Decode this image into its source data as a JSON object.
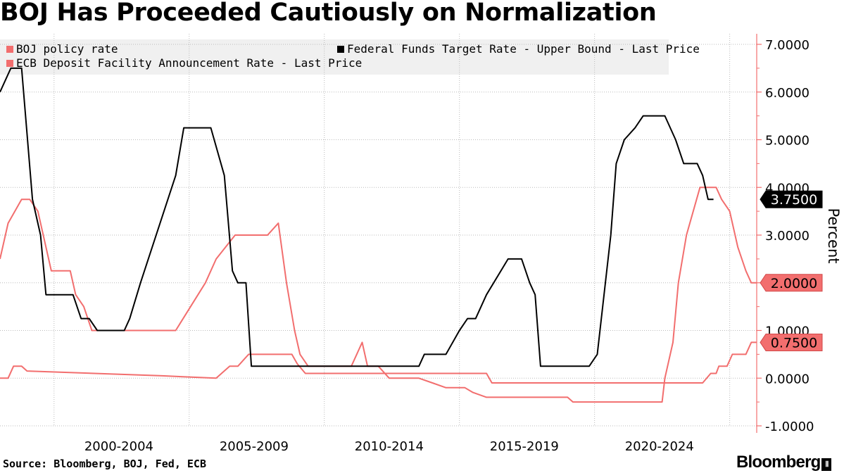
{
  "title": "BOJ Has Proceeded Cautiously on Normalization",
  "source": "Source: Bloomberg, BOJ, Fed, ECB",
  "brand": "Bloomberg",
  "brand_mark": "Ⅱ",
  "colors": {
    "boj": "#f26e6e",
    "fed": "#000000",
    "ecb": "#f26e6e",
    "axis": "#f26e6e",
    "grid": "#bbbbbb"
  },
  "chart_data": {
    "type": "line",
    "title": "BOJ Has Proceeded Cautiously on Normalization",
    "xlabel": "",
    "ylabel": "Percent",
    "ylim": [
      -1,
      7
    ],
    "xlim": [
      1998.0,
      2026.0
    ],
    "y_ticks": [
      7,
      6,
      5,
      4,
      3,
      2,
      1,
      0,
      -1
    ],
    "y_tick_labels": [
      "7.0000",
      "6.0000",
      "5.0000",
      "4.0000",
      "3.0000",
      "2.0000",
      "1.0000",
      "0.0000",
      "-1.0000"
    ],
    "x_tick_labels": [
      "2000-2004",
      "2005-2009",
      "2010-2014",
      "2015-2019",
      "2020-2024"
    ],
    "x_tick_centers": [
      2002.4,
      2007.4,
      2012.4,
      2017.4,
      2022.4
    ],
    "x_gridlines": [
      2000.0,
      2005.0,
      2010.0,
      2015.0,
      2020.0,
      2025.0
    ],
    "grid": true,
    "legend_position": "top-left",
    "series": [
      {
        "name": "BOJ policy rate",
        "color": "#f26e6e",
        "last_label": "0.7500",
        "points": [
          [
            1998.0,
            0.0
          ],
          [
            1998.3,
            0.0
          ],
          [
            1998.5,
            0.25
          ],
          [
            1998.8,
            0.25
          ],
          [
            1999.0,
            0.15
          ],
          [
            2004.0,
            0.05
          ],
          [
            2006.0,
            0.0
          ],
          [
            2006.5,
            0.25
          ],
          [
            2006.8,
            0.25
          ],
          [
            2007.2,
            0.5
          ],
          [
            2008.5,
            0.5
          ],
          [
            2008.8,
            0.5
          ],
          [
            2009.0,
            0.3
          ],
          [
            2009.3,
            0.1
          ],
          [
            2010.5,
            0.1
          ],
          [
            2013.0,
            0.1
          ],
          [
            2016.0,
            0.1
          ],
          [
            2016.2,
            -0.1
          ],
          [
            2024.0,
            -0.1
          ],
          [
            2024.3,
            0.1
          ],
          [
            2024.5,
            0.1
          ],
          [
            2024.6,
            0.25
          ],
          [
            2024.9,
            0.25
          ],
          [
            2025.1,
            0.5
          ],
          [
            2025.6,
            0.5
          ],
          [
            2025.8,
            0.75
          ],
          [
            2026.0,
            0.75
          ]
        ]
      },
      {
        "name": "Federal Funds Target Rate - Upper Bound - Last Price",
        "color": "#000000",
        "last_label": "3.7500",
        "points": [
          [
            1998.0,
            6.0
          ],
          [
            1998.4,
            6.5
          ],
          [
            1998.8,
            6.5
          ],
          [
            1999.2,
            3.75
          ],
          [
            1999.5,
            3.0
          ],
          [
            1999.7,
            1.75
          ],
          [
            2000.4,
            1.75
          ],
          [
            2000.7,
            1.75
          ],
          [
            2001.0,
            1.25
          ],
          [
            2001.3,
            1.25
          ],
          [
            2001.6,
            1.0
          ],
          [
            2002.6,
            1.0
          ],
          [
            2002.8,
            1.25
          ],
          [
            2003.2,
            2.0
          ],
          [
            2004.5,
            4.25
          ],
          [
            2004.8,
            5.25
          ],
          [
            2005.8,
            5.25
          ],
          [
            2006.3,
            4.25
          ],
          [
            2006.6,
            2.25
          ],
          [
            2006.8,
            2.0
          ],
          [
            2007.1,
            2.0
          ],
          [
            2007.3,
            0.25
          ],
          [
            2008.5,
            0.25
          ],
          [
            2012.0,
            0.25
          ],
          [
            2013.5,
            0.25
          ],
          [
            2013.7,
            0.5
          ],
          [
            2014.5,
            0.5
          ],
          [
            2015.0,
            1.0
          ],
          [
            2015.3,
            1.25
          ],
          [
            2015.6,
            1.25
          ],
          [
            2016.0,
            1.75
          ],
          [
            2016.8,
            2.5
          ],
          [
            2017.3,
            2.5
          ],
          [
            2017.6,
            2.0
          ],
          [
            2017.8,
            1.75
          ],
          [
            2018.0,
            0.25
          ],
          [
            2019.0,
            0.25
          ],
          [
            2019.8,
            0.25
          ],
          [
            2020.1,
            0.5
          ],
          [
            2020.6,
            3.0
          ],
          [
            2020.8,
            4.5
          ],
          [
            2021.1,
            5.0
          ],
          [
            2021.5,
            5.25
          ],
          [
            2021.8,
            5.5
          ],
          [
            2022.6,
            5.5
          ],
          [
            2023.0,
            5.0
          ],
          [
            2023.3,
            4.5
          ],
          [
            2023.8,
            4.5
          ],
          [
            2024.0,
            4.25
          ],
          [
            2024.2,
            3.75
          ],
          [
            2024.4,
            3.75
          ]
        ]
      },
      {
        "name": "ECB Deposit Facility Announcement Rate - Last Price",
        "color": "#f26e6e",
        "last_label": "2.0000",
        "points": [
          [
            1998.0,
            2.5
          ],
          [
            1998.3,
            3.25
          ],
          [
            1998.8,
            3.75
          ],
          [
            1999.1,
            3.75
          ],
          [
            1999.4,
            3.5
          ],
          [
            1999.9,
            2.25
          ],
          [
            2000.4,
            2.25
          ],
          [
            2000.6,
            2.25
          ],
          [
            2000.8,
            1.75
          ],
          [
            2001.1,
            1.5
          ],
          [
            2001.4,
            1.0
          ],
          [
            2003.0,
            1.0
          ],
          [
            2004.5,
            1.0
          ],
          [
            2005.6,
            2.0
          ],
          [
            2006.0,
            2.5
          ],
          [
            2006.7,
            3.0
          ],
          [
            2007.9,
            3.0
          ],
          [
            2008.3,
            3.25
          ],
          [
            2008.6,
            2.0
          ],
          [
            2008.9,
            1.0
          ],
          [
            2009.1,
            0.5
          ],
          [
            2009.4,
            0.25
          ],
          [
            2011.0,
            0.25
          ],
          [
            2011.2,
            0.5
          ],
          [
            2011.4,
            0.75
          ],
          [
            2011.6,
            0.25
          ],
          [
            2012.0,
            0.25
          ],
          [
            2012.4,
            0.0
          ],
          [
            2013.5,
            0.0
          ],
          [
            2014.0,
            -0.1
          ],
          [
            2014.5,
            -0.2
          ],
          [
            2015.2,
            -0.2
          ],
          [
            2015.5,
            -0.3
          ],
          [
            2016.0,
            -0.4
          ],
          [
            2017.5,
            -0.4
          ],
          [
            2019.0,
            -0.4
          ],
          [
            2019.2,
            -0.5
          ],
          [
            2021.8,
            -0.5
          ],
          [
            2022.5,
            -0.5
          ],
          [
            2022.6,
            0.0
          ],
          [
            2022.9,
            0.75
          ],
          [
            2023.1,
            2.0
          ],
          [
            2023.4,
            3.0
          ],
          [
            2023.9,
            4.0
          ],
          [
            2024.5,
            4.0
          ],
          [
            2024.7,
            3.75
          ],
          [
            2025.0,
            3.5
          ],
          [
            2025.3,
            2.75
          ],
          [
            2025.6,
            2.25
          ],
          [
            2025.8,
            2.0
          ],
          [
            2026.0,
            2.0
          ]
        ]
      }
    ]
  }
}
